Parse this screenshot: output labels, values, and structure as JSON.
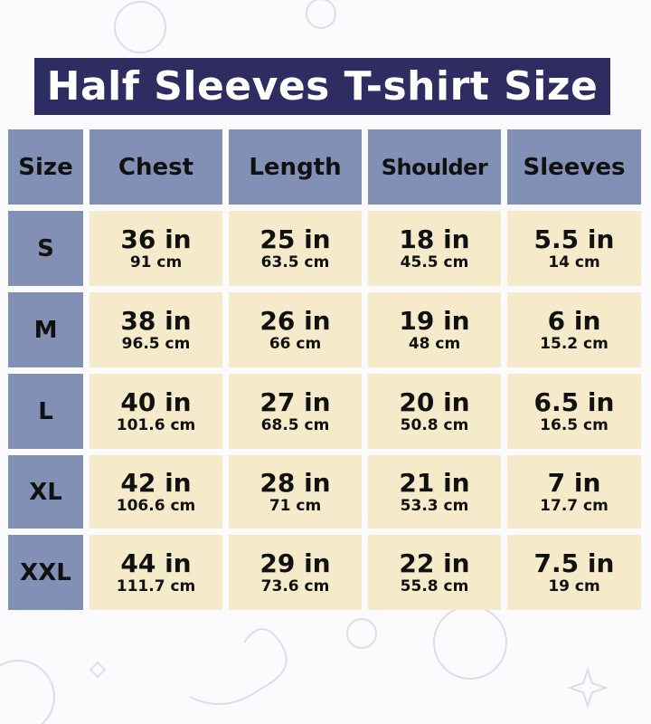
{
  "title": "Half Sleeves T-shirt Size",
  "colors": {
    "title_bg": "#2f2c61",
    "header_bg": "#8290b6",
    "cell_bg": "#f5ebcb"
  },
  "headers": [
    "Size",
    "Chest",
    "Length",
    "Shoulder",
    "Sleeves"
  ],
  "rows": [
    {
      "size": "S",
      "values": [
        {
          "in": "36 in",
          "cm": "91 cm"
        },
        {
          "in": "25 in",
          "cm": "63.5 cm"
        },
        {
          "in": "18 in",
          "cm": "45.5 cm"
        },
        {
          "in": "5.5 in",
          "cm": "14 cm"
        }
      ]
    },
    {
      "size": "M",
      "values": [
        {
          "in": "38 in",
          "cm": "96.5 cm"
        },
        {
          "in": "26 in",
          "cm": "66 cm"
        },
        {
          "in": "19 in",
          "cm": "48 cm"
        },
        {
          "in": "6 in",
          "cm": "15.2 cm"
        }
      ]
    },
    {
      "size": "L",
      "values": [
        {
          "in": "40 in",
          "cm": "101.6 cm"
        },
        {
          "in": "27 in",
          "cm": "68.5 cm"
        },
        {
          "in": "20 in",
          "cm": "50.8 cm"
        },
        {
          "in": "6.5 in",
          "cm": "16.5 cm"
        }
      ]
    },
    {
      "size": "XL",
      "values": [
        {
          "in": "42 in",
          "cm": "106.6 cm"
        },
        {
          "in": "28 in",
          "cm": "71 cm"
        },
        {
          "in": "21 in",
          "cm": "53.3 cm"
        },
        {
          "in": "7 in",
          "cm": "17.7 cm"
        }
      ]
    },
    {
      "size": "XXL",
      "values": [
        {
          "in": "44 in",
          "cm": "111.7 cm"
        },
        {
          "in": "29 in",
          "cm": "73.6 cm"
        },
        {
          "in": "22 in",
          "cm": "55.8 cm"
        },
        {
          "in": "7.5 in",
          "cm": "19 cm"
        }
      ]
    }
  ]
}
